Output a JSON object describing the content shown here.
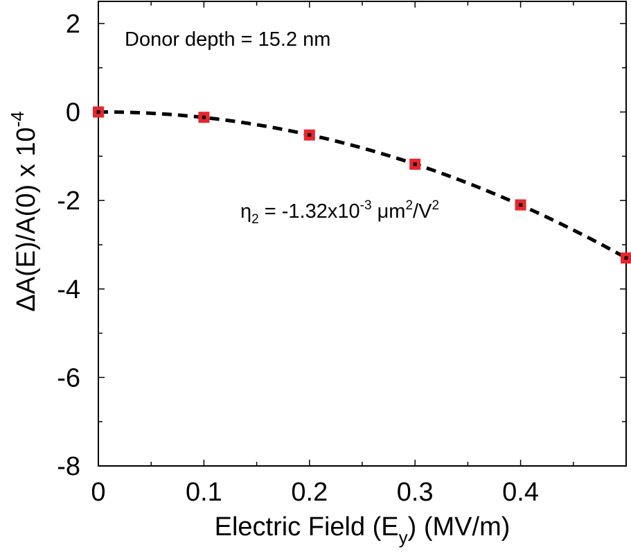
{
  "chart_data": {
    "type": "scatter",
    "title": "",
    "xlabel": {
      "main": "Electric Field (E",
      "sub": "y",
      "tail": ") (MV/m)"
    },
    "ylabel": {
      "main": "ΔA(E)/A(0)  x 10",
      "sup": "-4"
    },
    "xlim": [
      0,
      0.5
    ],
    "ylim": [
      -8,
      2.5
    ],
    "x_ticks": [
      0,
      0.1,
      0.2,
      0.3,
      0.4
    ],
    "x_tick_labels": [
      "0",
      "0.1",
      "0.2",
      "0.3",
      "0.4"
    ],
    "x_minor_ticks": [
      0.05,
      0.15,
      0.25,
      0.35,
      0.45
    ],
    "y_ticks": [
      2,
      0,
      -2,
      -4,
      -6,
      -8
    ],
    "y_tick_labels": [
      "2",
      "0",
      "-2",
      "-4",
      "-6",
      "-8"
    ],
    "y_minor_ticks": [
      1,
      -1,
      -3,
      -5,
      -7
    ],
    "series": [
      {
        "name": "data",
        "marker": "square",
        "color": "#e8262b",
        "x": [
          0,
          0.1,
          0.2,
          0.3,
          0.4,
          0.5
        ],
        "y": [
          0.0,
          -0.12,
          -0.52,
          -1.18,
          -2.1,
          -3.3
        ]
      },
      {
        "name": "fit",
        "style": "dashed",
        "color": "#000000",
        "eta2": -1.32
      }
    ],
    "annotations": {
      "donor_depth": "Donor depth = 15.2 nm",
      "eta": {
        "part1": "η",
        "sub1": "2",
        "part2": " = -1.32x10",
        "sup1": "-3",
        "part3": " μm",
        "sup2": "2",
        "part4": "/V",
        "sup3": "2"
      }
    }
  }
}
